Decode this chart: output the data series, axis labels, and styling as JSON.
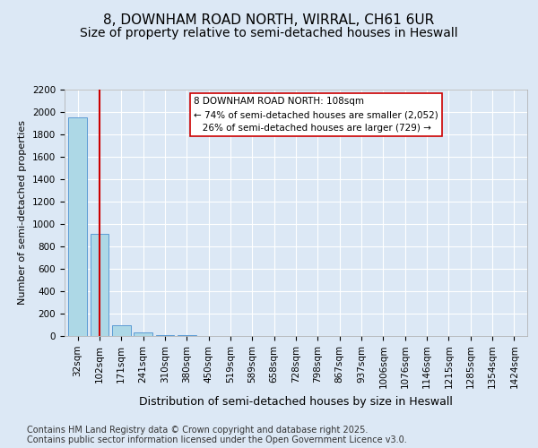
{
  "title1": "8, DOWNHAM ROAD NORTH, WIRRAL, CH61 6UR",
  "title2": "Size of property relative to semi-detached houses in Heswall",
  "xlabel": "Distribution of semi-detached houses by size in Heswall",
  "ylabel": "Number of semi-detached properties",
  "categories": [
    "32sqm",
    "102sqm",
    "171sqm",
    "241sqm",
    "310sqm",
    "380sqm",
    "450sqm",
    "519sqm",
    "589sqm",
    "658sqm",
    "728sqm",
    "798sqm",
    "867sqm",
    "937sqm",
    "1006sqm",
    "1076sqm",
    "1146sqm",
    "1215sqm",
    "1285sqm",
    "1354sqm",
    "1424sqm"
  ],
  "values": [
    1950,
    910,
    100,
    30,
    10,
    5,
    3,
    2,
    1,
    1,
    0,
    0,
    0,
    0,
    0,
    0,
    0,
    0,
    0,
    0,
    0
  ],
  "bar_color": "#add8e6",
  "bar_edge_color": "#5b9bd5",
  "red_line_x": 1.0,
  "red_line_color": "#cc0000",
  "annotation_text": "8 DOWNHAM ROAD NORTH: 108sqm\n← 74% of semi-detached houses are smaller (2,052)\n   26% of semi-detached houses are larger (729) →",
  "annotation_box_color": "#cc0000",
  "annotation_bg": "#ffffff",
  "ylim": [
    0,
    2200
  ],
  "yticks": [
    0,
    200,
    400,
    600,
    800,
    1000,
    1200,
    1400,
    1600,
    1800,
    2000,
    2200
  ],
  "footer1": "Contains HM Land Registry data © Crown copyright and database right 2025.",
  "footer2": "Contains public sector information licensed under the Open Government Licence v3.0.",
  "bg_color": "#dce8f5",
  "plot_bg_color": "#dce8f5",
  "title1_fontsize": 11,
  "title2_fontsize": 10,
  "axis_label_fontsize": 8,
  "tick_fontsize": 7.5,
  "footer_fontsize": 7
}
